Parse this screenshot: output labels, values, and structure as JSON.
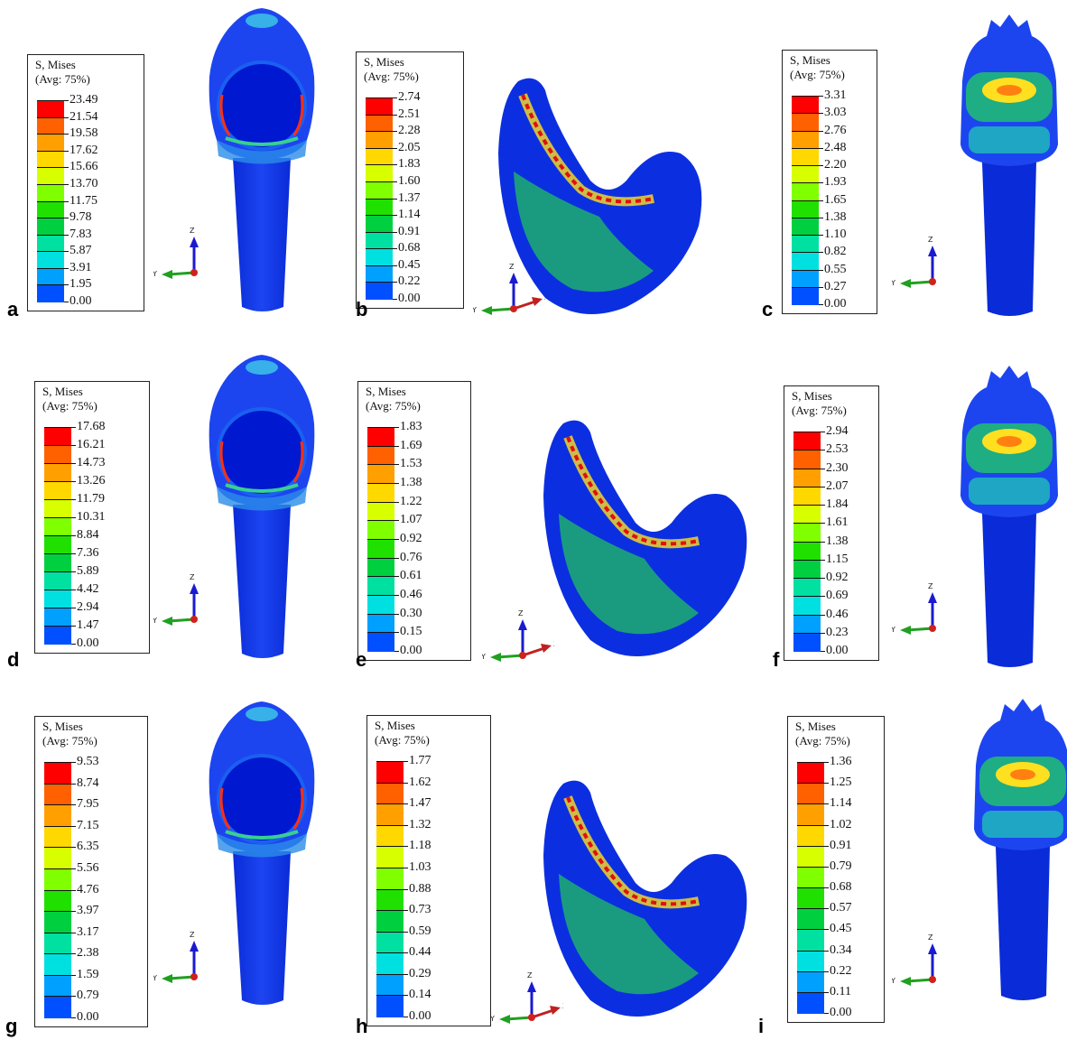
{
  "legend": {
    "title_line1": "S, Mises",
    "title_line2": "(Avg: 75%)",
    "colors": [
      "#0000ff",
      "#0040ff",
      "#0080ff",
      "#00b8ff",
      "#00ffee",
      "#00ffa0",
      "#00e050",
      "#00ff00",
      "#80ff00",
      "#ccff00",
      "#ffff00",
      "#ffc000",
      "#ff8000",
      "#ff0000"
    ]
  },
  "axis_labels": {
    "x": "X",
    "y": "Y",
    "z": "Z"
  },
  "panels": [
    {
      "letter": "a",
      "model": "tooth",
      "values": [
        "23.49",
        "21.54",
        "19.58",
        "17.62",
        "15.66",
        "13.70",
        "11.75",
        "9.78",
        "7.83",
        "5.87",
        "3.91",
        "1.95",
        "0.00"
      ]
    },
    {
      "letter": "b",
      "model": "crown",
      "values": [
        "2.74",
        "2.51",
        "2.28",
        "2.05",
        "1.83",
        "1.60",
        "1.37",
        "1.14",
        "0.91",
        "0.68",
        "0.45",
        "0.22",
        "0.00"
      ]
    },
    {
      "letter": "c",
      "model": "tooth-side",
      "values": [
        "3.31",
        "3.03",
        "2.76",
        "2.48",
        "2.20",
        "1.93",
        "1.65",
        "1.38",
        "1.10",
        "0.82",
        "0.55",
        "0.27",
        "0.00"
      ]
    },
    {
      "letter": "d",
      "model": "tooth",
      "values": [
        "17.68",
        "16.21",
        "14.73",
        "13.26",
        "11.79",
        "10.31",
        "8.84",
        "7.36",
        "5.89",
        "4.42",
        "2.94",
        "1.47",
        "0.00"
      ]
    },
    {
      "letter": "e",
      "model": "crown",
      "values": [
        "1.83",
        "1.69",
        "1.53",
        "1.38",
        "1.22",
        "1.07",
        "0.92",
        "0.76",
        "0.61",
        "0.46",
        "0.30",
        "0.15",
        "0.00"
      ]
    },
    {
      "letter": "f",
      "model": "tooth-side",
      "values": [
        "2.94",
        "2.53",
        "2.30",
        "2.07",
        "1.84",
        "1.61",
        "1.38",
        "1.15",
        "0.92",
        "0.69",
        "0.46",
        "0.23",
        "0.00"
      ]
    },
    {
      "letter": "g",
      "model": "tooth",
      "values": [
        "9.53",
        "8.74",
        "7.95",
        "7.15",
        "6.35",
        "5.56",
        "4.76",
        "3.97",
        "3.17",
        "2.38",
        "1.59",
        "0.79",
        "0.00"
      ]
    },
    {
      "letter": "h",
      "model": "crown",
      "values": [
        "1.77",
        "1.62",
        "1.47",
        "1.32",
        "1.18",
        "1.03",
        "0.88",
        "0.73",
        "0.59",
        "0.44",
        "0.29",
        "0.14",
        "0.00"
      ]
    },
    {
      "letter": "i",
      "model": "tooth-side",
      "values": [
        "1.36",
        "1.25",
        "1.14",
        "1.02",
        "0.91",
        "0.79",
        "0.68",
        "0.57",
        "0.45",
        "0.34",
        "0.22",
        "0.11",
        "0.00"
      ]
    }
  ]
}
